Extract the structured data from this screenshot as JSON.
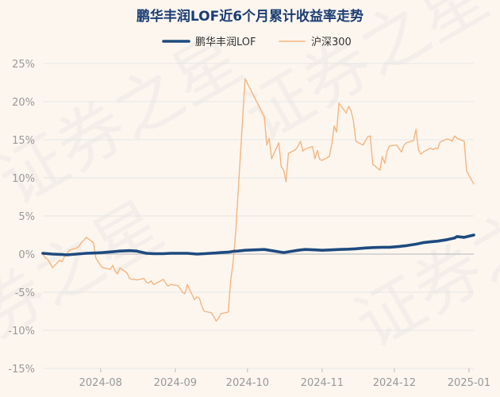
{
  "colors": {
    "title": "#1b3d73",
    "background": "#fcf6ef",
    "fund_series": "#1e4a7f",
    "index_series": "#f5b57f",
    "grid": "#e6e6e6",
    "zero_line": "#cccccc",
    "tick_text": "#999999"
  },
  "watermark": "证券之星",
  "chart_data": {
    "type": "line",
    "title": "鹏华丰润LOF近6个月累计收益率走势",
    "xlabel": "",
    "ylabel": "",
    "ylim": [
      -15,
      25
    ],
    "ytick_values": [
      25,
      20,
      15,
      10,
      5,
      0,
      -5,
      -10,
      -15
    ],
    "ytick_labels": [
      "25%",
      "20%",
      "15%",
      "10%",
      "5%",
      "0%",
      "-5%",
      "-10%",
      "-15%"
    ],
    "xlim": [
      "2024-07-08",
      "2025-01-03"
    ],
    "xtick_values": [
      "2024-08-01",
      "2024-09-01",
      "2024-10-01",
      "2024-11-01",
      "2024-12-01",
      "2025-01-01"
    ],
    "xtick_labels": [
      "2024-08",
      "2024-09",
      "2024-10",
      "2024-11",
      "2024-12",
      "2025-01"
    ],
    "grid": "horizontal",
    "legend_position": "top",
    "series": [
      {
        "name": "鹏华丰润LOF",
        "color": "#1e4a7f",
        "points": [
          [
            "2024-07-08",
            0.1
          ],
          [
            "2024-07-12",
            0.0
          ],
          [
            "2024-07-16",
            -0.05
          ],
          [
            "2024-07-18",
            -0.1
          ],
          [
            "2024-07-22",
            0.0
          ],
          [
            "2024-07-26",
            0.1
          ],
          [
            "2024-07-30",
            0.15
          ],
          [
            "2024-08-02",
            0.2
          ],
          [
            "2024-08-06",
            0.3
          ],
          [
            "2024-08-09",
            0.4
          ],
          [
            "2024-08-13",
            0.45
          ],
          [
            "2024-08-16",
            0.4
          ],
          [
            "2024-08-20",
            0.1
          ],
          [
            "2024-08-23",
            0.05
          ],
          [
            "2024-08-27",
            0.05
          ],
          [
            "2024-08-30",
            0.1
          ],
          [
            "2024-09-03",
            0.1
          ],
          [
            "2024-09-06",
            0.1
          ],
          [
            "2024-09-10",
            0.0
          ],
          [
            "2024-09-13",
            0.05
          ],
          [
            "2024-09-18",
            0.15
          ],
          [
            "2024-09-20",
            0.2
          ],
          [
            "2024-09-23",
            0.25
          ],
          [
            "2024-09-25",
            0.35
          ],
          [
            "2024-09-27",
            0.4
          ],
          [
            "2024-09-30",
            0.5
          ],
          [
            "2024-10-08",
            0.6
          ],
          [
            "2024-10-10",
            0.5
          ],
          [
            "2024-10-14",
            0.3
          ],
          [
            "2024-10-16",
            0.2
          ],
          [
            "2024-10-18",
            0.3
          ],
          [
            "2024-10-22",
            0.5
          ],
          [
            "2024-10-25",
            0.6
          ],
          [
            "2024-10-29",
            0.55
          ],
          [
            "2024-11-01",
            0.5
          ],
          [
            "2024-11-05",
            0.55
          ],
          [
            "2024-11-08",
            0.6
          ],
          [
            "2024-11-12",
            0.65
          ],
          [
            "2024-11-15",
            0.7
          ],
          [
            "2024-11-19",
            0.8
          ],
          [
            "2024-11-22",
            0.85
          ],
          [
            "2024-11-26",
            0.9
          ],
          [
            "2024-11-29",
            0.9
          ],
          [
            "2024-12-03",
            1.0
          ],
          [
            "2024-12-06",
            1.1
          ],
          [
            "2024-12-10",
            1.3
          ],
          [
            "2024-12-13",
            1.5
          ],
          [
            "2024-12-16",
            1.6
          ],
          [
            "2024-12-19",
            1.7
          ],
          [
            "2024-12-23",
            1.9
          ],
          [
            "2024-12-26",
            2.1
          ],
          [
            "2024-12-27",
            2.3
          ],
          [
            "2024-12-30",
            2.2
          ],
          [
            "2025-01-03",
            2.5
          ]
        ]
      },
      {
        "name": "沪深300",
        "color": "#f5b57f",
        "points": [
          [
            "2024-07-08",
            0.0
          ],
          [
            "2024-07-09",
            -0.5
          ],
          [
            "2024-07-10",
            -0.7
          ],
          [
            "2024-07-11",
            -1.2
          ],
          [
            "2024-07-12",
            -1.8
          ],
          [
            "2024-07-15",
            -0.8
          ],
          [
            "2024-07-16",
            -1.0
          ],
          [
            "2024-07-17",
            -0.3
          ],
          [
            "2024-07-18",
            0.1
          ],
          [
            "2024-07-19",
            0.5
          ],
          [
            "2024-07-22",
            0.8
          ],
          [
            "2024-07-23",
            1.0
          ],
          [
            "2024-07-24",
            1.5
          ],
          [
            "2024-07-25",
            1.8
          ],
          [
            "2024-07-26",
            2.2
          ],
          [
            "2024-07-29",
            1.5
          ],
          [
            "2024-07-30",
            -0.5
          ],
          [
            "2024-07-31",
            -1.0
          ],
          [
            "2024-08-01",
            -1.5
          ],
          [
            "2024-08-02",
            -1.8
          ],
          [
            "2024-08-05",
            -2.0
          ],
          [
            "2024-08-06",
            -1.5
          ],
          [
            "2024-08-07",
            -2.2
          ],
          [
            "2024-08-08",
            -2.6
          ],
          [
            "2024-08-09",
            -1.8
          ],
          [
            "2024-08-12",
            -2.5
          ],
          [
            "2024-08-13",
            -3.2
          ],
          [
            "2024-08-14",
            -3.3
          ],
          [
            "2024-08-15",
            -3.3
          ],
          [
            "2024-08-16",
            -3.4
          ],
          [
            "2024-08-19",
            -3.2
          ],
          [
            "2024-08-20",
            -3.7
          ],
          [
            "2024-08-21",
            -3.8
          ],
          [
            "2024-08-22",
            -3.5
          ],
          [
            "2024-08-23",
            -4.0
          ],
          [
            "2024-08-26",
            -3.5
          ],
          [
            "2024-08-27",
            -3.3
          ],
          [
            "2024-08-28",
            -3.8
          ],
          [
            "2024-08-29",
            -4.2
          ],
          [
            "2024-08-30",
            -4.0
          ],
          [
            "2024-09-02",
            -4.1
          ],
          [
            "2024-09-03",
            -4.5
          ],
          [
            "2024-09-04",
            -5.0
          ],
          [
            "2024-09-05",
            -5.2
          ],
          [
            "2024-09-06",
            -4.0
          ],
          [
            "2024-09-09",
            -6.0
          ],
          [
            "2024-09-10",
            -5.6
          ],
          [
            "2024-09-11",
            -5.8
          ],
          [
            "2024-09-12",
            -6.8
          ],
          [
            "2024-09-13",
            -7.5
          ],
          [
            "2024-09-16",
            -7.7
          ],
          [
            "2024-09-17",
            -8.2
          ],
          [
            "2024-09-18",
            -8.8
          ],
          [
            "2024-09-19",
            -8.4
          ],
          [
            "2024-09-20",
            -7.8
          ],
          [
            "2024-09-23",
            -7.6
          ],
          [
            "2024-09-24",
            -3.5
          ],
          [
            "2024-09-25",
            -1.2
          ],
          [
            "2024-09-26",
            2.5
          ],
          [
            "2024-09-27",
            7.5
          ],
          [
            "2024-09-30",
            23.0
          ],
          [
            "2024-10-08",
            18.0
          ],
          [
            "2024-10-09",
            14.3
          ],
          [
            "2024-10-10",
            15.2
          ],
          [
            "2024-10-11",
            12.5
          ],
          [
            "2024-10-14",
            14.6
          ],
          [
            "2024-10-15",
            11.5
          ],
          [
            "2024-10-16",
            11.0
          ],
          [
            "2024-10-17",
            9.5
          ],
          [
            "2024-10-18",
            13.2
          ],
          [
            "2024-10-21",
            13.7
          ],
          [
            "2024-10-22",
            14.2
          ],
          [
            "2024-10-23",
            14.8
          ],
          [
            "2024-10-24",
            13.5
          ],
          [
            "2024-10-25",
            13.8
          ],
          [
            "2024-10-28",
            14.1
          ],
          [
            "2024-10-29",
            12.5
          ],
          [
            "2024-10-30",
            13.6
          ],
          [
            "2024-10-31",
            12.4
          ],
          [
            "2024-11-01",
            12.3
          ],
          [
            "2024-11-04",
            12.8
          ],
          [
            "2024-11-05",
            14.4
          ],
          [
            "2024-11-06",
            16.8
          ],
          [
            "2024-11-07",
            16.0
          ],
          [
            "2024-11-08",
            19.8
          ],
          [
            "2024-11-11",
            18.5
          ],
          [
            "2024-11-12",
            19.4
          ],
          [
            "2024-11-13",
            18.8
          ],
          [
            "2024-11-14",
            17.5
          ],
          [
            "2024-11-15",
            14.8
          ],
          [
            "2024-11-18",
            14.3
          ],
          [
            "2024-11-19",
            14.9
          ],
          [
            "2024-11-20",
            15.4
          ],
          [
            "2024-11-21",
            15.5
          ],
          [
            "2024-11-22",
            11.8
          ],
          [
            "2024-11-25",
            11.0
          ],
          [
            "2024-11-26",
            12.8
          ],
          [
            "2024-11-27",
            11.9
          ],
          [
            "2024-11-28",
            13.5
          ],
          [
            "2024-11-29",
            14.2
          ],
          [
            "2024-12-02",
            14.3
          ],
          [
            "2024-12-03",
            13.8
          ],
          [
            "2024-12-04",
            13.4
          ],
          [
            "2024-12-05",
            14.3
          ],
          [
            "2024-12-06",
            14.6
          ],
          [
            "2024-12-09",
            14.9
          ],
          [
            "2024-12-10",
            16.4
          ],
          [
            "2024-12-11",
            13.7
          ],
          [
            "2024-12-12",
            13.1
          ],
          [
            "2024-12-13",
            13.4
          ],
          [
            "2024-12-16",
            13.9
          ],
          [
            "2024-12-17",
            13.7
          ],
          [
            "2024-12-18",
            13.9
          ],
          [
            "2024-12-19",
            13.8
          ],
          [
            "2024-12-20",
            14.7
          ],
          [
            "2024-12-23",
            15.1
          ],
          [
            "2024-12-24",
            15.0
          ],
          [
            "2024-12-25",
            14.8
          ],
          [
            "2024-12-26",
            15.5
          ],
          [
            "2024-12-27",
            15.2
          ],
          [
            "2024-12-30",
            14.8
          ],
          [
            "2024-12-31",
            10.9
          ],
          [
            "2025-01-03",
            9.2
          ]
        ]
      }
    ]
  }
}
